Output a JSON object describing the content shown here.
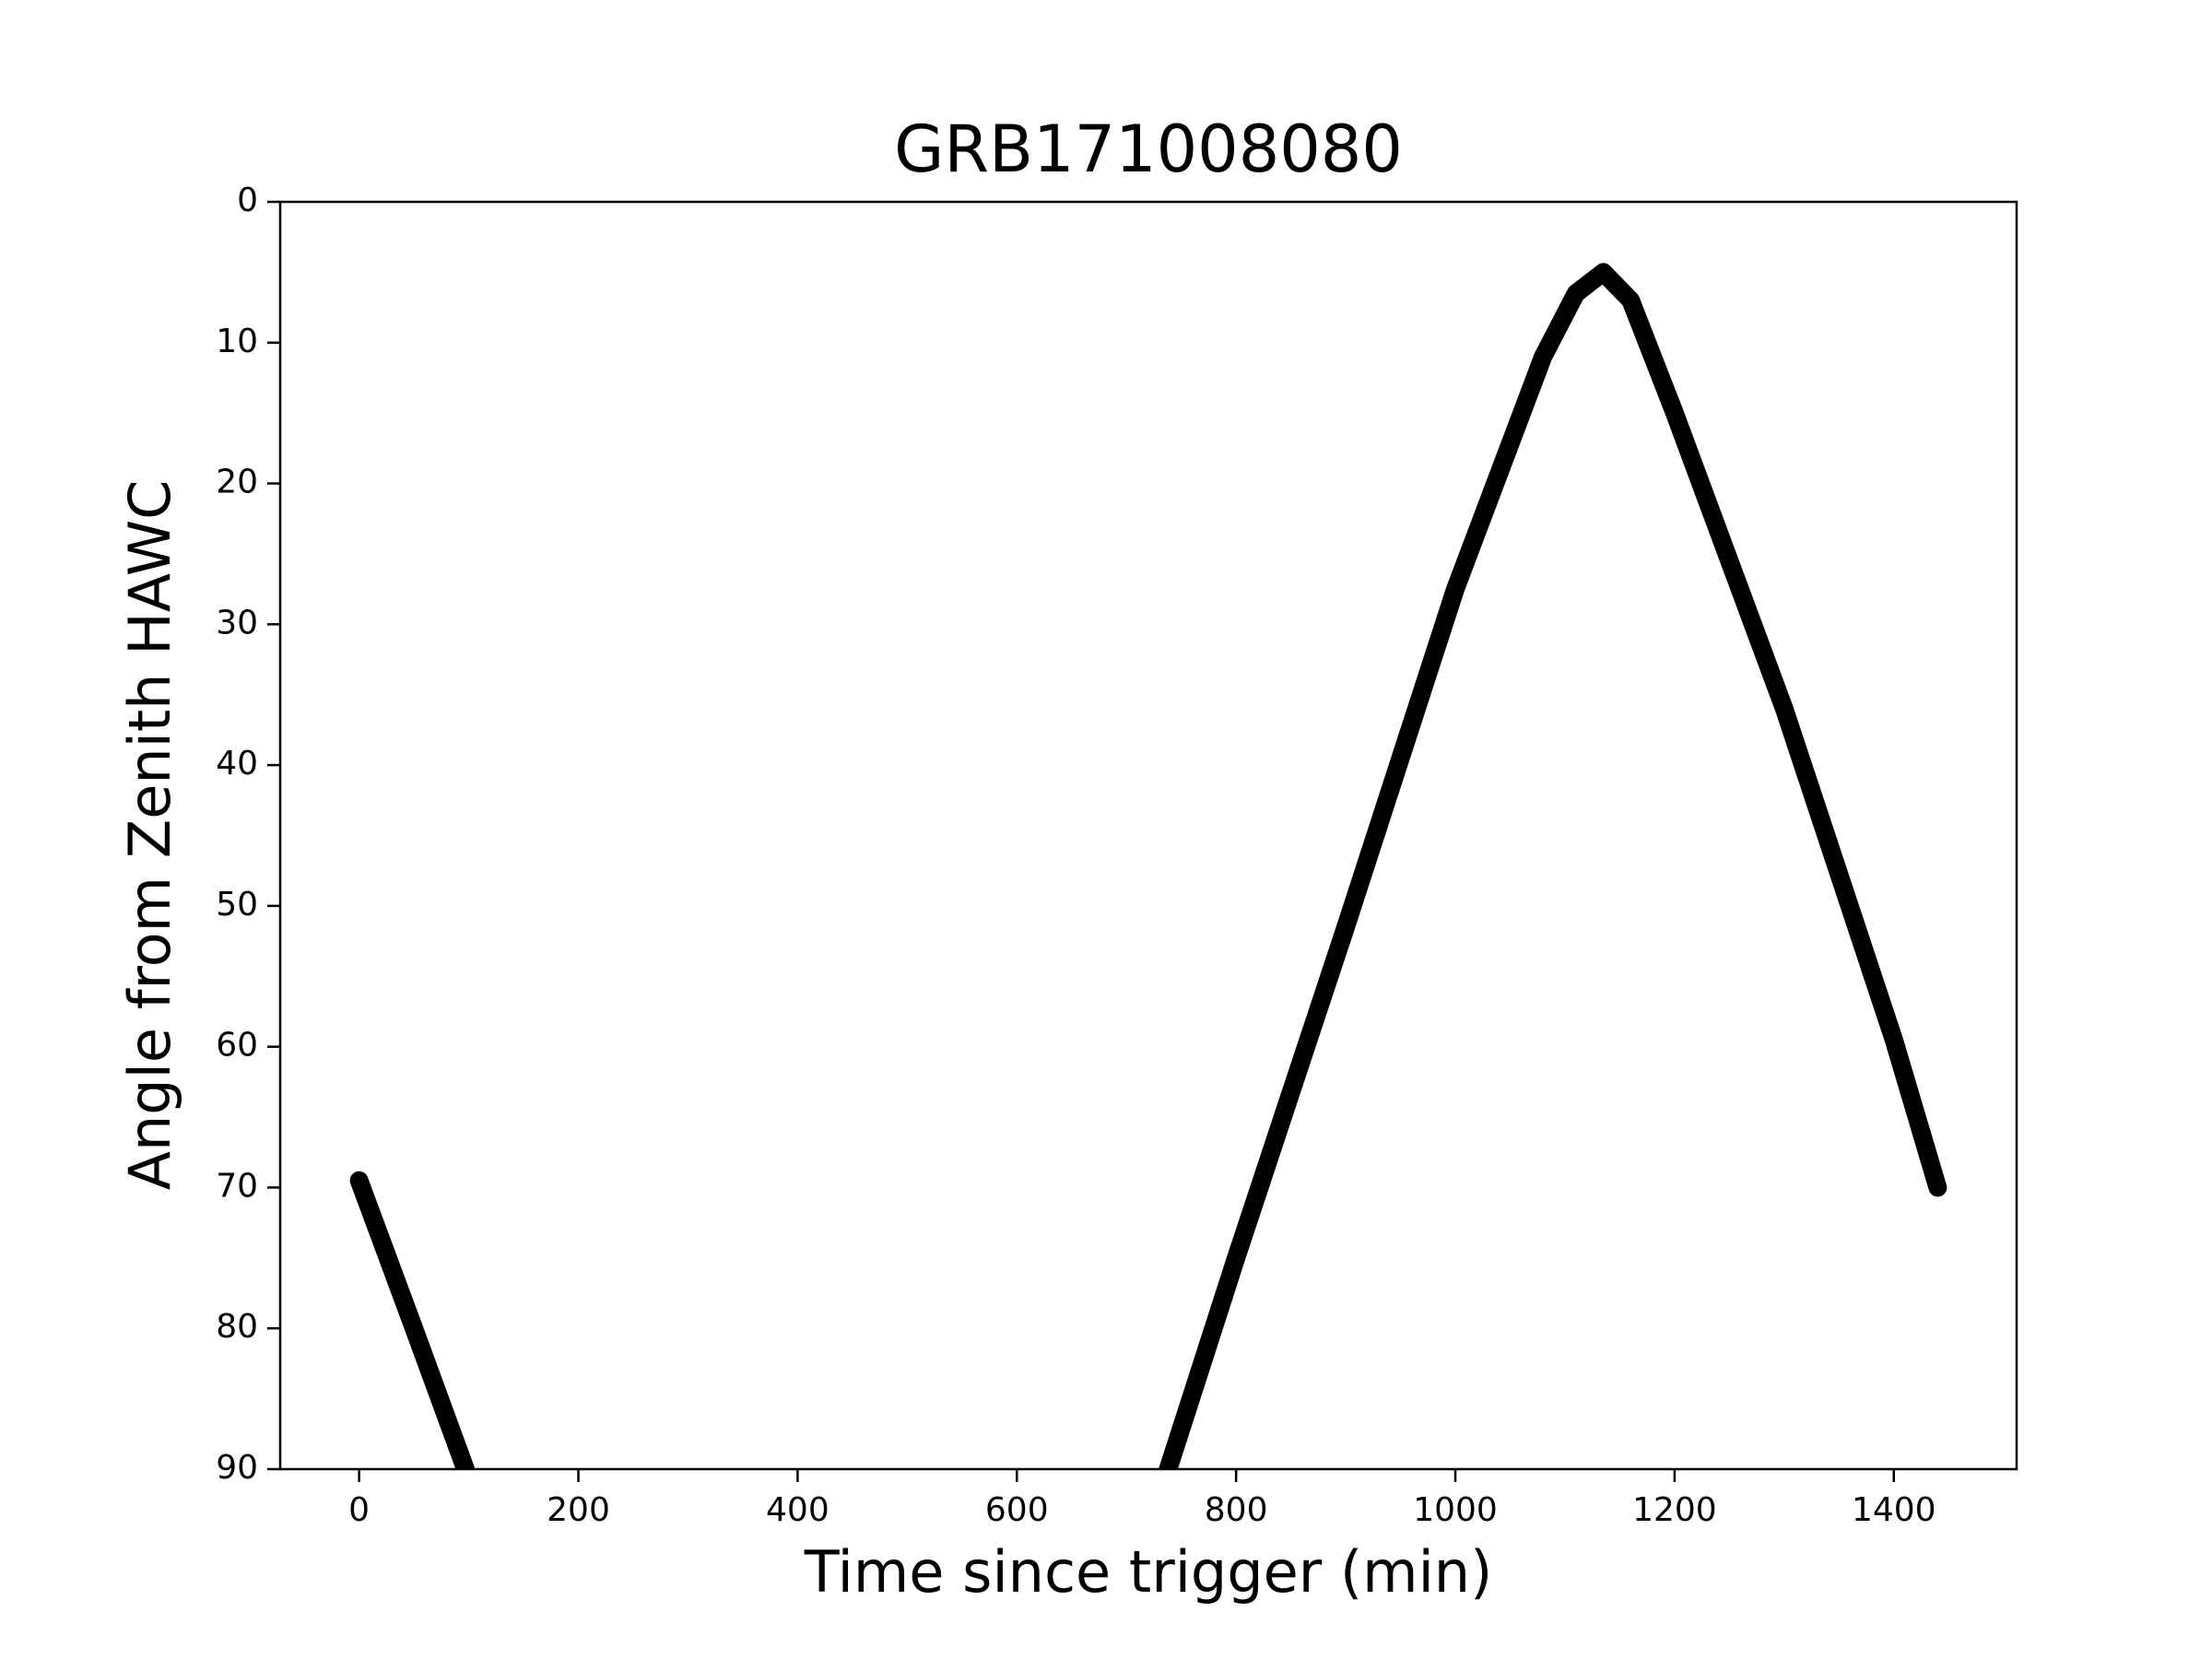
{
  "chart_data": {
    "type": "line",
    "title": "GRB171008080",
    "x_label": "Time since trigger (min)",
    "y_label": "Angle from Zenith HAWC",
    "x": [
      0,
      50,
      97,
      420,
      738,
      800,
      900,
      1000,
      1080,
      1110,
      1135,
      1160,
      1200,
      1300,
      1400,
      1440
    ],
    "series": [
      {
        "color": "#000000",
        "values": [
          69.5,
          80,
          90,
          null,
          90,
          75,
          51.5,
          27.5,
          11,
          6.5,
          5,
          7,
          15,
          36,
          59.5,
          70
        ]
      }
    ],
    "xlim": [
      -72,
      1512
    ],
    "xticks": [
      0,
      200,
      400,
      600,
      800,
      1000,
      1200,
      1400
    ],
    "ylim": [
      0,
      90
    ],
    "y_inverted": true,
    "yticks": [
      0,
      10,
      20,
      30,
      40,
      50,
      60,
      70,
      80,
      90
    ],
    "grid": false
  }
}
